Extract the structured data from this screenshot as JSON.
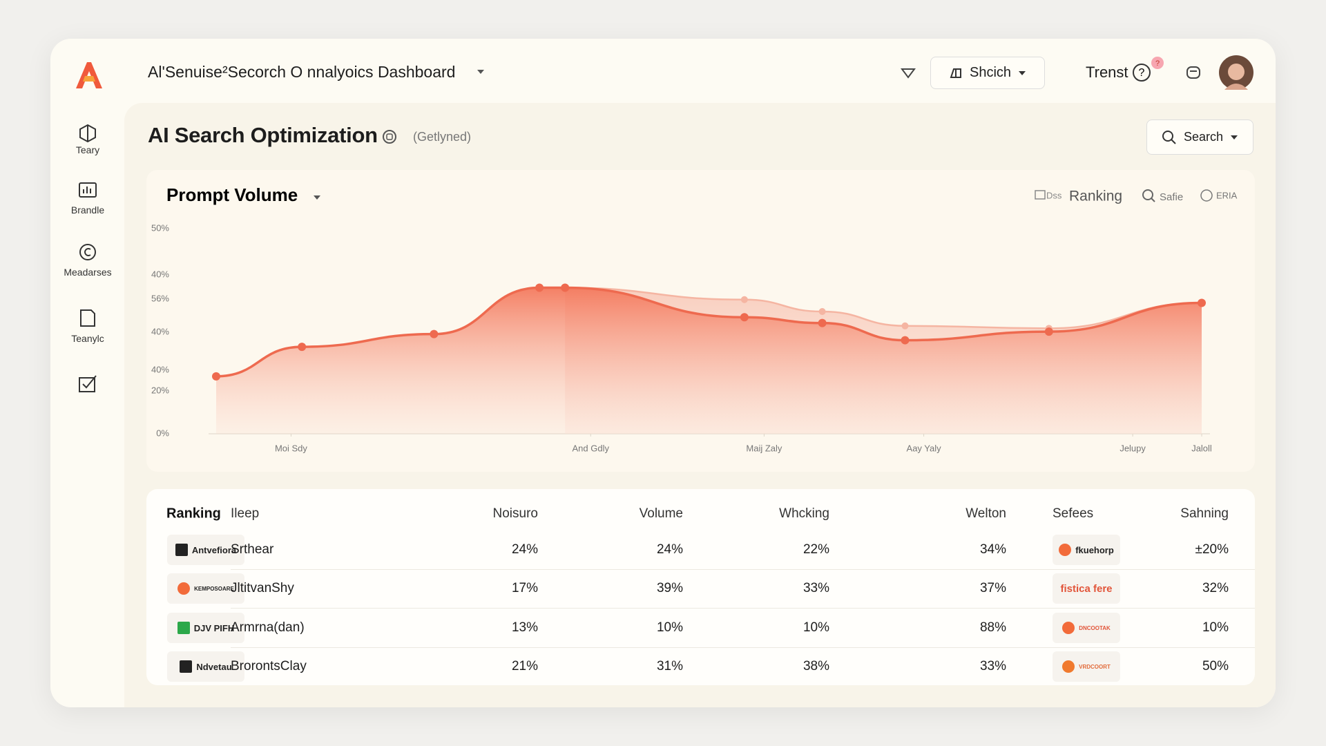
{
  "app": {
    "nav_title": "Al'Senuise²Secorch O nnalyoics Dashboard",
    "search_button": "Shcich",
    "user_label": "Trenst"
  },
  "sidebar": {
    "items": [
      "Teary",
      "Brandle",
      "Meadarses",
      "Teanylc"
    ]
  },
  "page": {
    "title": "AI Search Optimization",
    "status": "(Getlyned)",
    "search": "Search"
  },
  "chart_data": {
    "type": "area",
    "title": "Prompt Volume",
    "toolbar": [
      "Dss",
      "Ranking",
      "Safie",
      "ERIA"
    ],
    "x": [
      0,
      8.7,
      22.1,
      32.8,
      35.4,
      53.6,
      61.5,
      69.9,
      84.5,
      100
    ],
    "xlim": [
      0,
      100
    ],
    "xticks": [
      {
        "value": 7.6,
        "label": "Moi Sdy"
      },
      {
        "value": 38,
        "label": "And Gdly"
      },
      {
        "value": 55.6,
        "label": "Maij Zaly"
      },
      {
        "value": 71.8,
        "label": "Aay Yaly"
      },
      {
        "value": 93,
        "label": "Jelupy"
      },
      {
        "value": 100,
        "label": "Jaloll"
      }
    ],
    "ylim": [
      0,
      50
    ],
    "yticks": [
      {
        "value": 50,
        "label": "50%"
      },
      {
        "value": 0,
        "label": "0%"
      }
    ],
    "y_labels": [
      "40%",
      "56%",
      "40%",
      "40%",
      "20%"
    ],
    "series": [
      {
        "color": "#ee6a4f",
        "values": [
          14.0,
          21.2,
          24.3,
          35.6,
          35.6,
          28.4,
          27.0,
          22.8,
          24.9,
          31.9
        ]
      },
      {
        "color": "#f5b5a2",
        "values": [
          null,
          null,
          null,
          null,
          35.6,
          32.7,
          29.8,
          26.3,
          25.7,
          31.9
        ]
      }
    ]
  },
  "table": {
    "header": [
      "Ranking",
      "Ileep",
      "Noisuro",
      "Volume",
      "Whcking",
      "Welton",
      "Sefees",
      "Sahning"
    ],
    "rows": [
      [
        "Antvefiora",
        "Srthear",
        "24%",
        "24%",
        "22%",
        "34%",
        "fkuehorp",
        "±20%"
      ],
      [
        "KEMPOSOARE",
        "JltitvanShy",
        "17%",
        "39%",
        "33%",
        "37%",
        "fistica fere",
        "32%"
      ],
      [
        "DJV PIFH",
        "Armrna(dan)",
        "13%",
        "10%",
        "10%",
        "88%",
        "DNCOOTAK",
        "10%"
      ],
      [
        "Ndvetau",
        "BrorontsClay",
        "21%",
        "31%",
        "38%",
        "33%",
        "VRDCOORT",
        "50%"
      ]
    ]
  }
}
